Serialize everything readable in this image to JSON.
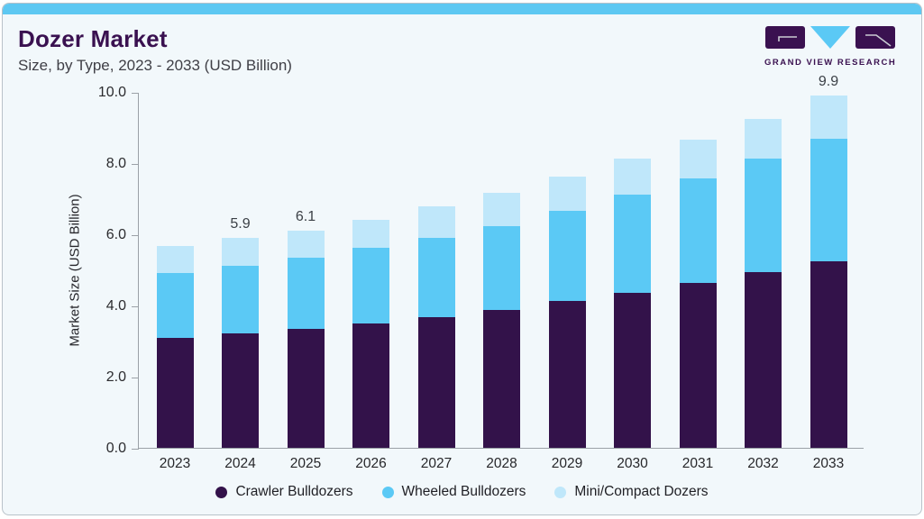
{
  "header": {
    "title": "Dozer Market",
    "subtitle": "Size, by Type, 2023 - 2033 (USD Billion)"
  },
  "logo": {
    "text": "GRAND VIEW RESEARCH"
  },
  "theme": {
    "accent": "#5ec8f2",
    "card_background": "#f2f8fb",
    "title_color": "#3a1150",
    "crawler_color": "#33124a",
    "wheeled_color": "#5bc9f5",
    "mini_color": "#bfe7fa"
  },
  "chart_data": {
    "type": "bar",
    "stacked": true,
    "title": "Dozer Market Size, by Type, 2023 - 2033 (USD Billion)",
    "xlabel": "",
    "ylabel": "Market Size (USD Billion)",
    "ylim": [
      0,
      10
    ],
    "yticks": [
      "0.0",
      "2.0",
      "4.0",
      "6.0",
      "8.0",
      "10.0"
    ],
    "grid": false,
    "legend_position": "bottom",
    "categories": [
      "2023",
      "2024",
      "2025",
      "2026",
      "2027",
      "2028",
      "2029",
      "2030",
      "2031",
      "2032",
      "2033"
    ],
    "series": [
      {
        "name": "Crawler Bulldozers",
        "color": "#33124a",
        "values": [
          3.1,
          3.22,
          3.35,
          3.5,
          3.68,
          3.88,
          4.12,
          4.35,
          4.63,
          4.94,
          5.25
        ]
      },
      {
        "name": "Wheeled Bulldozers",
        "color": "#5bc9f5",
        "values": [
          1.8,
          1.9,
          2.0,
          2.11,
          2.22,
          2.35,
          2.53,
          2.76,
          2.95,
          3.18,
          3.44
        ]
      },
      {
        "name": "Mini/Compact Dozers",
        "color": "#bfe7fa",
        "values": [
          0.77,
          0.78,
          0.75,
          0.8,
          0.88,
          0.93,
          0.98,
          1.01,
          1.08,
          1.13,
          1.21
        ]
      }
    ],
    "total_labels": {
      "2024": "5.9",
      "2025": "6.1",
      "2033": "9.9"
    }
  }
}
